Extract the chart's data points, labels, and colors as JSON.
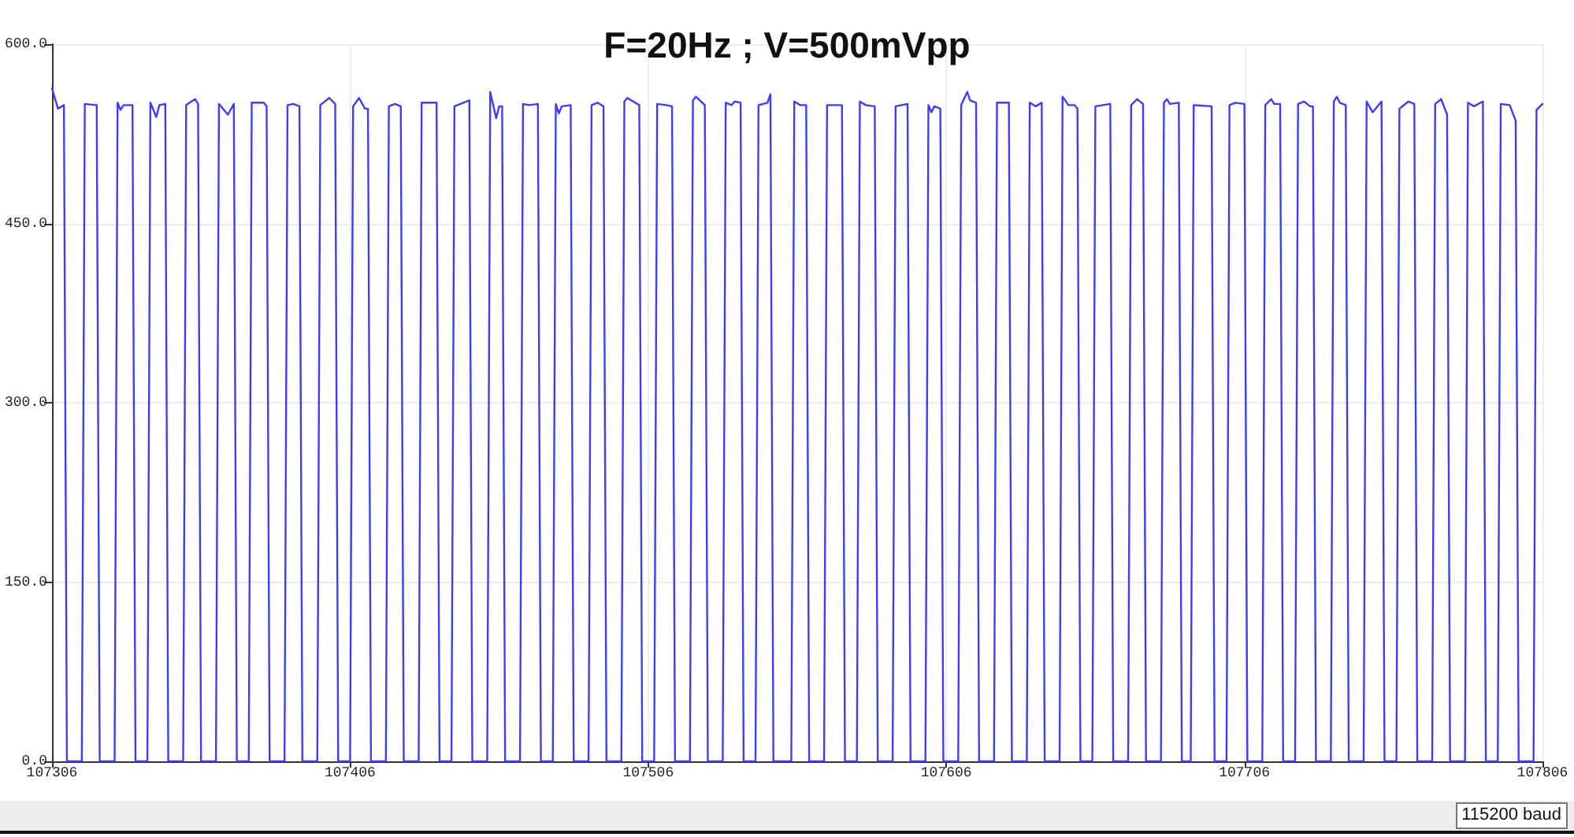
{
  "chart_data": {
    "type": "line",
    "title": "F=20Hz ; V=500mVpp",
    "x": [
      107306,
      107308,
      107310,
      107311,
      107316,
      107317,
      107321,
      107322,
      107327,
      107328,
      107329,
      107330,
      107333,
      107334,
      107338,
      107339,
      107341,
      107342,
      107344,
      107345,
      107350,
      107351,
      107354,
      107355,
      107356,
      107361,
      107362,
      107365,
      107367,
      107368,
      107372,
      107373,
      107377,
      107378,
      107379,
      107384,
      107385,
      107387,
      107389,
      107390,
      107395,
      107396,
      107399,
      107401,
      107402,
      107406,
      107407,
      107409,
      107411,
      107412,
      107413,
      107418,
      107419,
      107421,
      107423,
      107424,
      107429,
      107430,
      107435,
      107436,
      107440,
      107441,
      107446,
      107447,
      107452,
      107453,
      107454,
      107455,
      107456,
      107457,
      107458,
      107463,
      107464,
      107466,
      107469,
      107470,
      107474,
      107475,
      107476,
      107477,
      107480,
      107481,
      107486,
      107487,
      107489,
      107491,
      107492,
      107497,
      107498,
      107499,
      107503,
      107504,
      107508,
      107509,
      107512,
      107514,
      107515,
      107520,
      107521,
      107522,
      107525,
      107526,
      107531,
      107532,
      107534,
      107535,
      107537,
      107538,
      107542,
      107543,
      107546,
      107547,
      107548,
      107554,
      107555,
      107557,
      107559,
      107560,
      107565,
      107566,
      107571,
      107572,
      107576,
      107577,
      107579,
      107582,
      107583,
      107588,
      107589,
      107593,
      107594,
      107599,
      107600,
      107601,
      107602,
      107604,
      107605,
      107610,
      107611,
      107613,
      107614,
      107616,
      107617,
      107622,
      107623,
      107627,
      107628,
      107633,
      107634,
      107636,
      107638,
      107639,
      107644,
      107645,
      107647,
      107649,
      107650,
      107651,
      107655,
      107656,
      107661,
      107662,
      107667,
      107668,
      107670,
      107672,
      107673,
      107678,
      107679,
      107680,
      107681,
      107684,
      107685,
      107688,
      107689,
      107695,
      107696,
      107700,
      107701,
      107703,
      107706,
      107707,
      107712,
      107713,
      107715,
      107716,
      107718,
      107719,
      107723,
      107724,
      107726,
      107728,
      107729,
      107730,
      107735,
      107736,
      107737,
      107738,
      107740,
      107741,
      107746,
      107747,
      107749,
      107752,
      107753,
      107757,
      107758,
      107761,
      107763,
      107764,
      107769,
      107770,
      107772,
      107774,
      107775,
      107780,
      107781,
      107783,
      107786,
      107787,
      107791,
      107792,
      107795,
      107797,
      107798,
      107803,
      107804,
      107806
    ],
    "values": [
      563,
      546,
      549,
      0,
      0,
      550,
      549,
      0,
      0,
      551,
      545,
      549,
      549,
      0,
      0,
      551,
      539,
      549,
      550,
      0,
      0,
      549,
      554,
      550,
      0,
      0,
      550,
      541,
      550,
      0,
      0,
      551,
      551,
      548,
      0,
      0,
      549,
      550,
      548,
      0,
      0,
      549,
      555,
      550,
      0,
      0,
      548,
      555,
      546,
      546,
      0,
      0,
      548,
      550,
      548,
      0,
      0,
      551,
      551,
      0,
      0,
      548,
      553,
      0,
      0,
      560,
      549,
      538,
      548,
      548,
      0,
      0,
      550,
      549,
      550,
      0,
      0,
      550,
      542,
      548,
      549,
      0,
      0,
      549,
      551,
      548,
      0,
      0,
      552,
      555,
      549,
      0,
      0,
      550,
      549,
      548,
      0,
      0,
      553,
      556,
      549,
      0,
      0,
      551,
      549,
      552,
      551,
      0,
      0,
      549,
      551,
      558,
      0,
      0,
      552,
      549,
      549,
      0,
      0,
      549,
      549,
      0,
      0,
      552,
      549,
      548,
      0,
      0,
      548,
      550,
      0,
      0,
      549,
      543,
      548,
      546,
      0,
      0,
      549,
      560,
      553,
      551,
      0,
      0,
      551,
      551,
      0,
      0,
      551,
      548,
      551,
      0,
      0,
      556,
      549,
      549,
      546,
      0,
      0,
      548,
      550,
      0,
      0,
      549,
      554,
      550,
      0,
      0,
      551,
      554,
      550,
      551,
      0,
      0,
      549,
      548,
      0,
      0,
      549,
      551,
      550,
      0,
      0,
      549,
      554,
      550,
      550,
      0,
      0,
      550,
      552,
      548,
      548,
      0,
      0,
      552,
      556,
      551,
      549,
      0,
      0,
      552,
      543,
      552,
      0,
      0,
      546,
      552,
      550,
      0,
      0,
      550,
      554,
      541,
      0,
      0,
      551,
      548,
      552,
      0,
      0,
      550,
      549,
      536,
      0,
      0,
      545,
      550
    ],
    "color": "#3c3cff",
    "marker": "none",
    "xlim": [
      107306,
      107806
    ],
    "xticks": [
      107306,
      107406,
      107506,
      107606,
      107706,
      107806
    ],
    "ylim": [
      0,
      600
    ],
    "yticks": [
      {
        "value": 0,
        "label": "0.0"
      },
      {
        "value": 150,
        "label": "150.0"
      },
      {
        "value": 300,
        "label": "300.0"
      },
      {
        "value": 450,
        "label": "450.0"
      },
      {
        "value": 600,
        "label": "600.0"
      }
    ],
    "grid": true,
    "annotations": [
      "115200 baud"
    ]
  }
}
